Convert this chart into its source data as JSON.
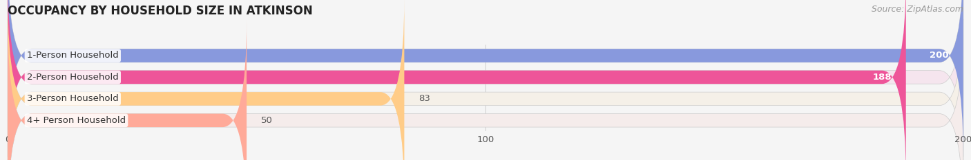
{
  "title": "OCCUPANCY BY HOUSEHOLD SIZE IN ATKINSON",
  "source": "Source: ZipAtlas.com",
  "categories": [
    "1-Person Household",
    "2-Person Household",
    "3-Person Household",
    "4+ Person Household"
  ],
  "values": [
    200,
    188,
    83,
    50
  ],
  "bar_colors": [
    "#8899dd",
    "#ee5599",
    "#ffcc88",
    "#ffaa99"
  ],
  "bar_bg_colors": [
    "#ebebf5",
    "#f5e5ee",
    "#f5f0e8",
    "#f5eceb"
  ],
  "xlim": [
    0,
    200
  ],
  "xticks": [
    0,
    100,
    200
  ],
  "title_fontsize": 12,
  "label_fontsize": 9.5,
  "value_fontsize": 9.5,
  "source_fontsize": 9,
  "background_color": "#f5f5f5",
  "bar_height": 0.62,
  "title_color": "#222222",
  "label_color": "#333333",
  "value_color_inside": "#ffffff",
  "value_color_outside": "#555555",
  "source_color": "#999999",
  "grid_color": "#cccccc",
  "rounding_pts": 12
}
